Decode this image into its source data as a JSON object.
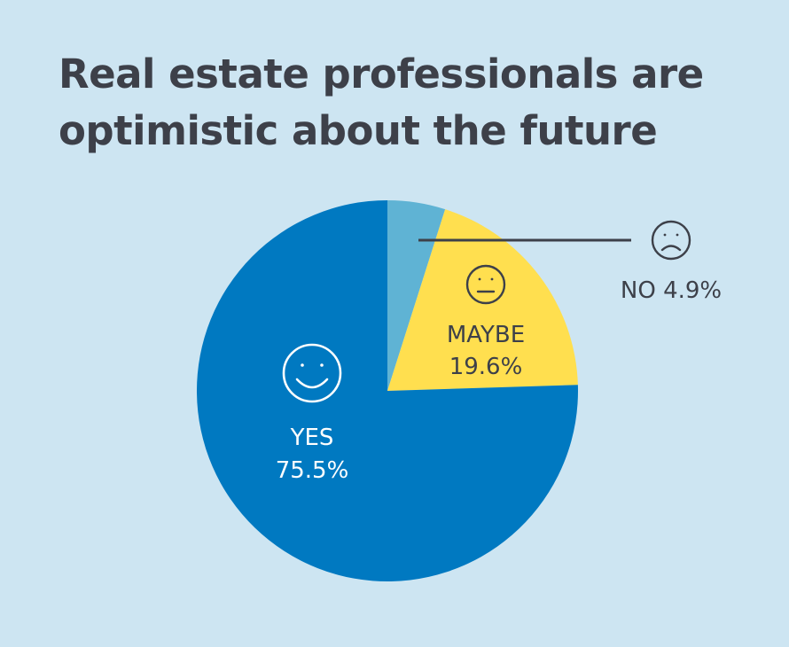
{
  "title_line1": "Real estate professionals are",
  "title_line2": "optimistic about the future",
  "colors": {
    "background": "#cde5f2",
    "yes": "#0079c1",
    "maybe": "#ffdf4f",
    "no": "#5fb3d4",
    "title": "#3d4049",
    "label_dark": "#3d4049",
    "label_light": "#ffffff"
  },
  "chart_data": {
    "type": "pie",
    "slices": [
      {
        "label": "NO",
        "value": 4.9,
        "value_label": "4.9%",
        "icon": "sad-face-icon",
        "color": "#5fb3d4"
      },
      {
        "label": "MAYBE",
        "value": 19.6,
        "value_label": "19.6%",
        "icon": "neutral-face-icon",
        "color": "#ffdf4f"
      },
      {
        "label": "YES",
        "value": 75.5,
        "value_label": "75.5%",
        "icon": "happy-face-icon",
        "color": "#0079c1"
      }
    ]
  }
}
